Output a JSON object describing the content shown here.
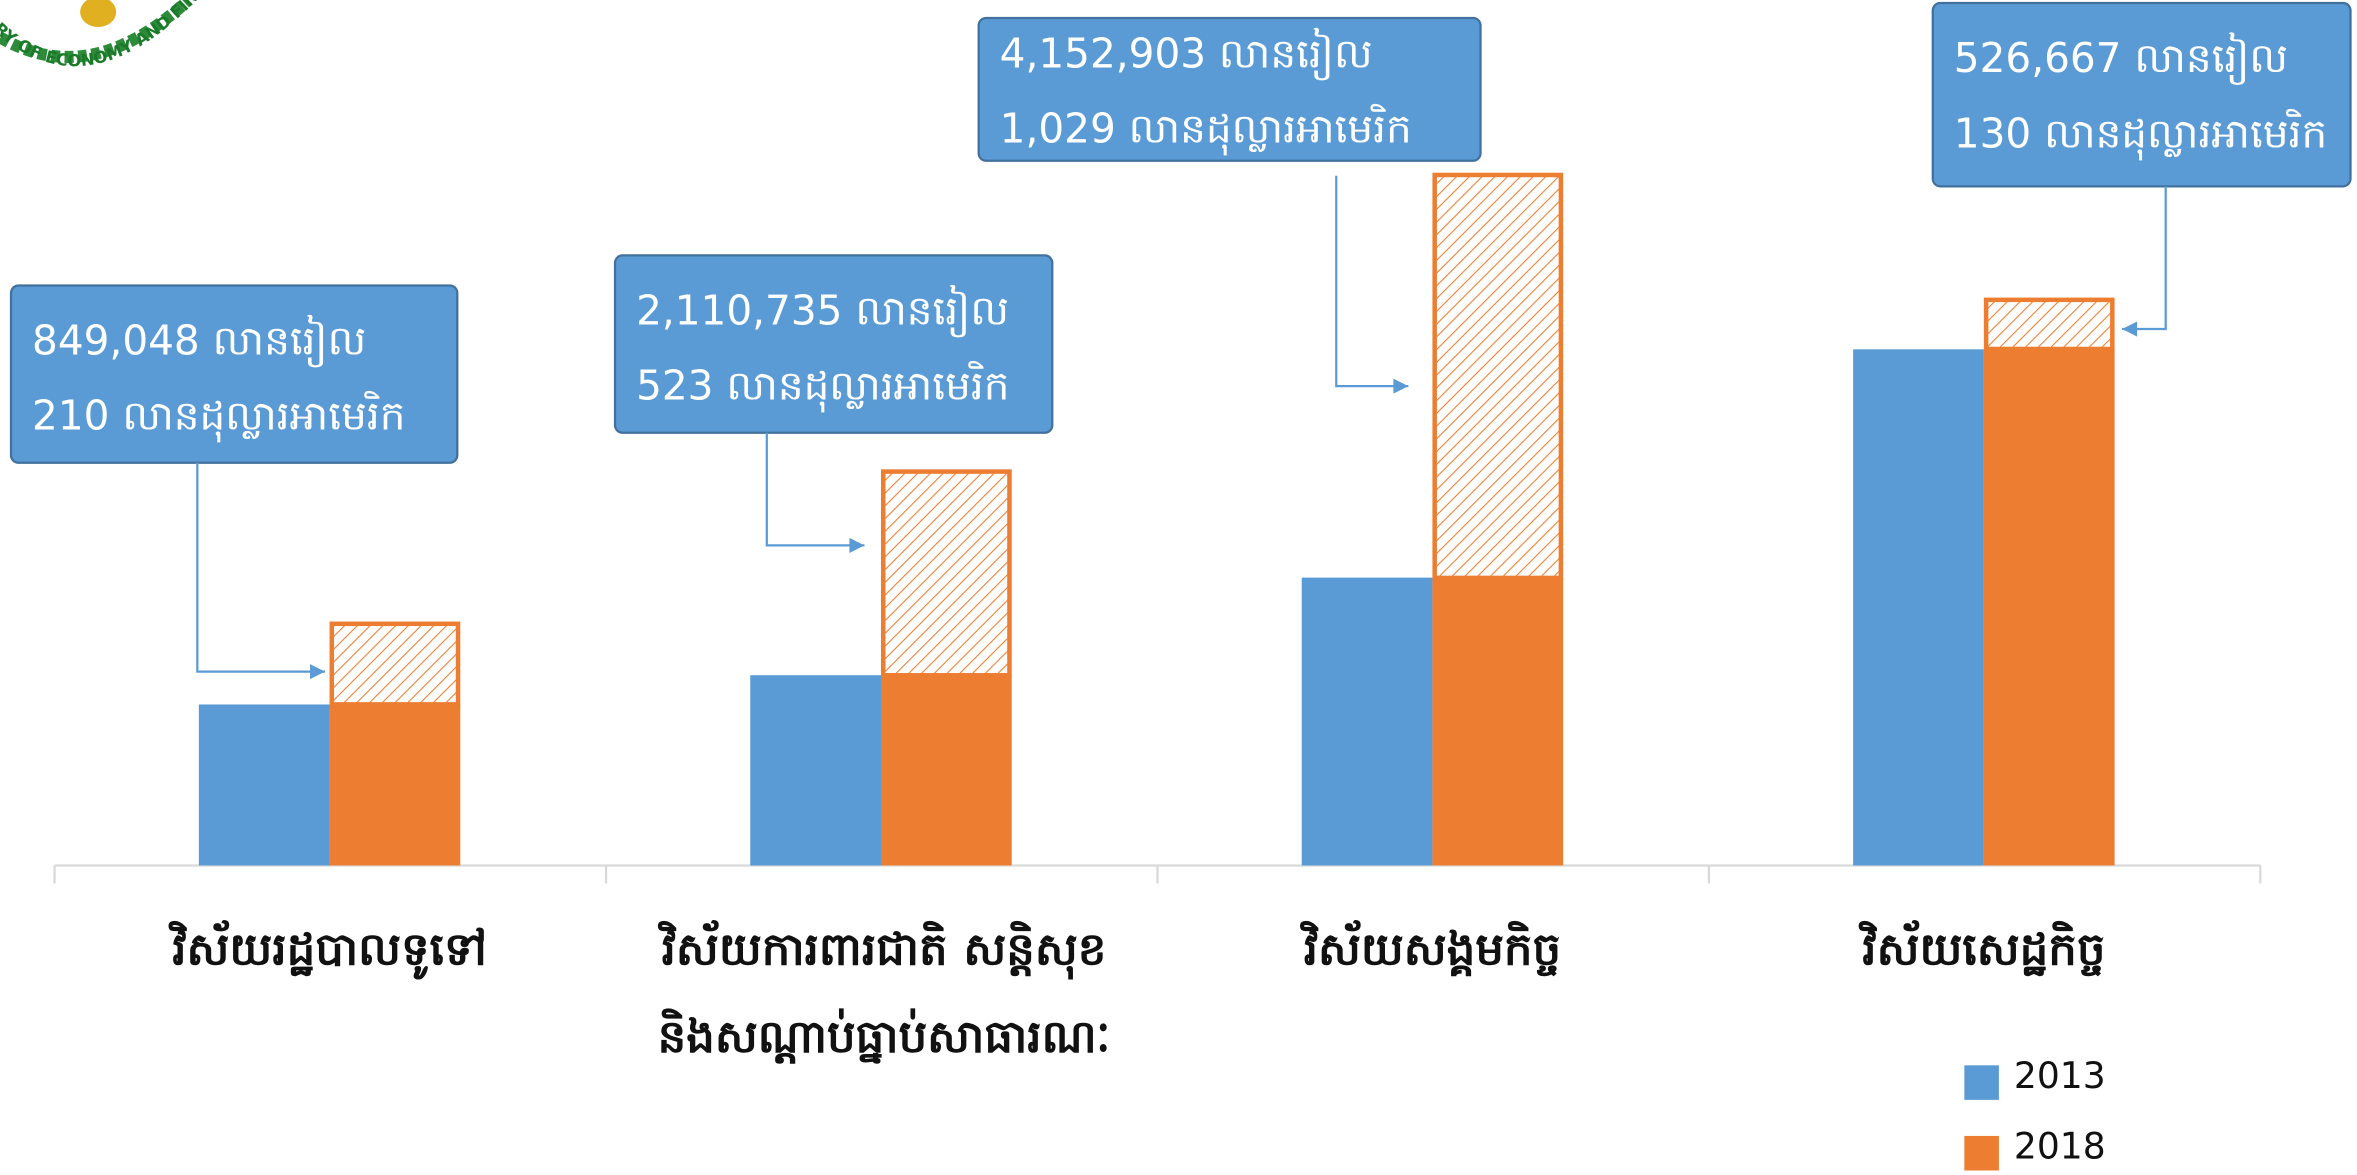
{
  "chart_data": {
    "type": "bar",
    "logo_text": "RY OF ECONOMY AND FINAN",
    "categories": [
      [
        "វិស័យរដ្ឋបាលទូទៅ"
      ],
      [
        "វិស័យការពារជាតិ សន្តិសុខ",
        "និងសណ្តាប់ធ្នាប់សាធារណៈ"
      ],
      [
        "វិស័យសង្គមកិច្ច"
      ],
      [
        "វិស័យសេដ្ឋកិច្ច"
      ]
    ],
    "series": [
      {
        "name": "2013",
        "color": "#5b9bd5",
        "values": [
          1650000,
          1950000,
          2950000,
          5290000
        ]
      },
      {
        "name": "2018",
        "color": "#ed7d31",
        "values": [
          2500000,
          4060000,
          7100000,
          5820000
        ],
        "increase": [
          849048,
          2110735,
          4152903,
          526667
        ],
        "increase_labels": [
          "849,048 លានរៀល",
          "2,110,735 លានរៀល",
          "4,152,903 លានរៀល",
          "526,667 លានរៀល"
        ],
        "usd_labels": [
          "210 លានដុល្លារអាមេរិក",
          "523 លានដុល្លារអាមេរិក",
          "1,029 លានដុល្លារអាមេរិក",
          "130 លានដុល្លារអាមេរិក"
        ]
      }
    ],
    "ylim": [
      0,
      8870000
    ],
    "legend": "bottom-right"
  }
}
